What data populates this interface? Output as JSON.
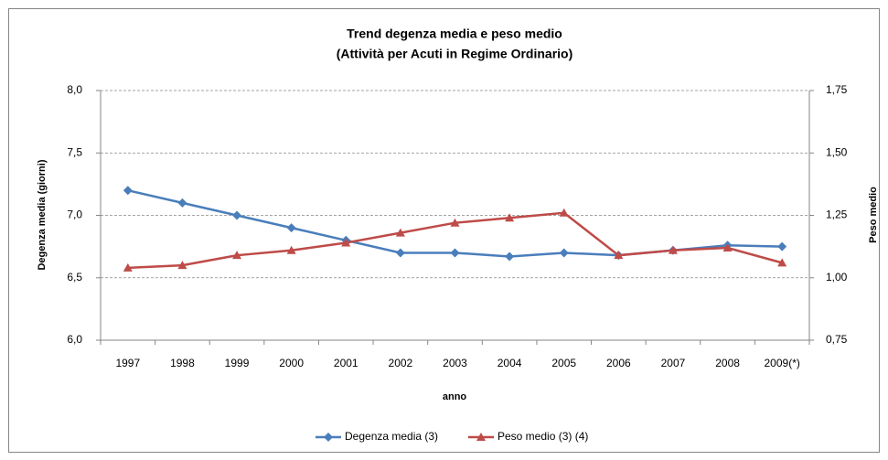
{
  "chart_data": {
    "type": "line",
    "title": "Trend degenza media e peso medio",
    "subtitle": "(Attività per Acuti in Regime Ordinario)",
    "x_label": "anno",
    "y_label": "Degenza media (giorni)",
    "y2_label": "Peso medio",
    "categories": [
      "1997",
      "1998",
      "1999",
      "2000",
      "2001",
      "2002",
      "2003",
      "2004",
      "2005",
      "2006",
      "2007",
      "2008",
      "2009(*)"
    ],
    "series": [
      {
        "name": "Degenza media (3)",
        "color": "#4a7ebb",
        "marker": "diamond",
        "values": [
          7.2,
          7.1,
          7.0,
          6.9,
          6.8,
          6.7,
          6.7,
          6.67,
          6.7,
          6.68,
          6.72,
          6.76,
          6.75
        ]
      },
      {
        "name": "Peso medio (3) (4)",
        "color": "#be4b48",
        "marker": "triangle",
        "axis": "y2",
        "values": [
          1.04,
          1.05,
          1.09,
          1.11,
          1.14,
          1.18,
          1.22,
          1.24,
          1.26,
          1.09,
          1.11,
          1.12,
          1.06
        ]
      }
    ],
    "ylim": [
      6,
      8
    ],
    "yticks": [
      {
        "value": 6,
        "label": "6,0"
      },
      {
        "value": 6.5,
        "label": "6,5"
      },
      {
        "value": 7,
        "label": "7,0"
      },
      {
        "value": 7.5,
        "label": "7,5"
      },
      {
        "value": 8,
        "label": "8,0"
      }
    ],
    "y2lim": [
      0.75,
      1.75
    ],
    "y2ticks": [
      {
        "value": 0.75,
        "label": "0,75"
      },
      {
        "value": 1,
        "label": "1,00"
      },
      {
        "value": 1.25,
        "label": "1,25"
      },
      {
        "value": 1.5,
        "label": "1,50"
      },
      {
        "value": 1.75,
        "label": "1,75"
      }
    ],
    "grid": true,
    "legend": "bottom"
  }
}
